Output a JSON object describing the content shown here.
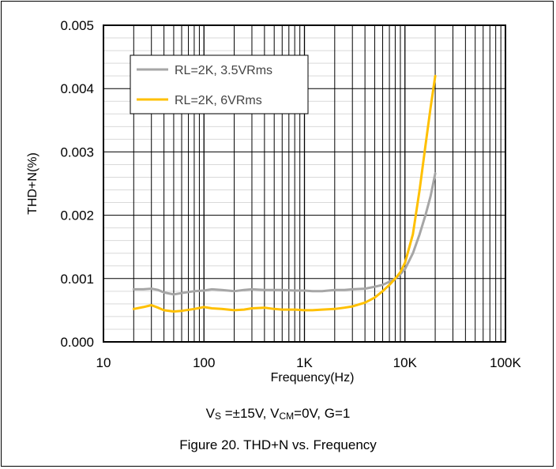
{
  "chart_data": {
    "type": "line",
    "title": "Figure 20. THD+N vs. Frequency",
    "xlabel": "Frequency(Hz)",
    "ylabel": "THD+N(%)",
    "xscale": "log",
    "xlim": [
      10,
      100000
    ],
    "ylim": [
      0,
      0.005
    ],
    "x_ticks": [
      10,
      100,
      1000,
      10000,
      100000
    ],
    "x_tick_labels": [
      "10",
      "100",
      "1K",
      "10K",
      "100K"
    ],
    "y_ticks": [
      0.0,
      0.001,
      0.002,
      0.003,
      0.004,
      0.005
    ],
    "y_tick_labels": [
      "0.000",
      "0.001",
      "0.002",
      "0.003",
      "0.004",
      "0.005"
    ],
    "grid": true,
    "legend_position": "top-left",
    "series": [
      {
        "name": "RL=2K, 3.5VRms",
        "color": "#a6a6a6",
        "x": [
          20,
          25,
          30,
          35,
          40,
          50,
          60,
          80,
          100,
          120,
          150,
          200,
          250,
          300,
          400,
          500,
          600,
          800,
          1000,
          1200,
          1500,
          2000,
          2500,
          3000,
          4000,
          5000,
          6000,
          7000,
          8000,
          9000,
          10000,
          12000,
          14000,
          16000,
          18000,
          20000
        ],
        "y": [
          0.00083,
          0.00083,
          0.00084,
          0.00082,
          0.00078,
          0.00075,
          0.00077,
          0.0008,
          0.00081,
          0.00083,
          0.00082,
          0.0008,
          0.00082,
          0.00083,
          0.00082,
          0.00082,
          0.00082,
          0.00081,
          0.00081,
          0.0008,
          0.0008,
          0.00082,
          0.00082,
          0.00083,
          0.00084,
          0.00087,
          0.0009,
          0.00095,
          0.001,
          0.00107,
          0.00115,
          0.0014,
          0.0017,
          0.002,
          0.0023,
          0.00266
        ]
      },
      {
        "name": "RL=2K, 6VRms",
        "color": "#ffc000",
        "x": [
          20,
          25,
          30,
          35,
          40,
          50,
          60,
          80,
          100,
          120,
          150,
          200,
          250,
          300,
          400,
          500,
          600,
          800,
          1000,
          1200,
          1500,
          2000,
          2500,
          3000,
          4000,
          5000,
          6000,
          7000,
          8000,
          9000,
          10000,
          12000,
          14000,
          16000,
          18000,
          20000
        ],
        "y": [
          0.00052,
          0.00055,
          0.00058,
          0.00054,
          0.0005,
          0.00048,
          0.00049,
          0.00052,
          0.00055,
          0.00053,
          0.00052,
          0.0005,
          0.00051,
          0.00053,
          0.00054,
          0.00052,
          0.00051,
          0.00051,
          0.0005,
          0.0005,
          0.00051,
          0.00052,
          0.00054,
          0.00056,
          0.00062,
          0.0007,
          0.0008,
          0.0009,
          0.001,
          0.0011,
          0.00125,
          0.0017,
          0.0024,
          0.0031,
          0.0037,
          0.0042
        ]
      }
    ],
    "annotations": [
      "VS =±15V, VCM=0V, G=1"
    ]
  },
  "conditions": {
    "prefix": "V",
    "s_sub": "S",
    "mid": " =±15V, V",
    "cm_sub": "CM",
    "suffix": "=0V, G=1"
  }
}
